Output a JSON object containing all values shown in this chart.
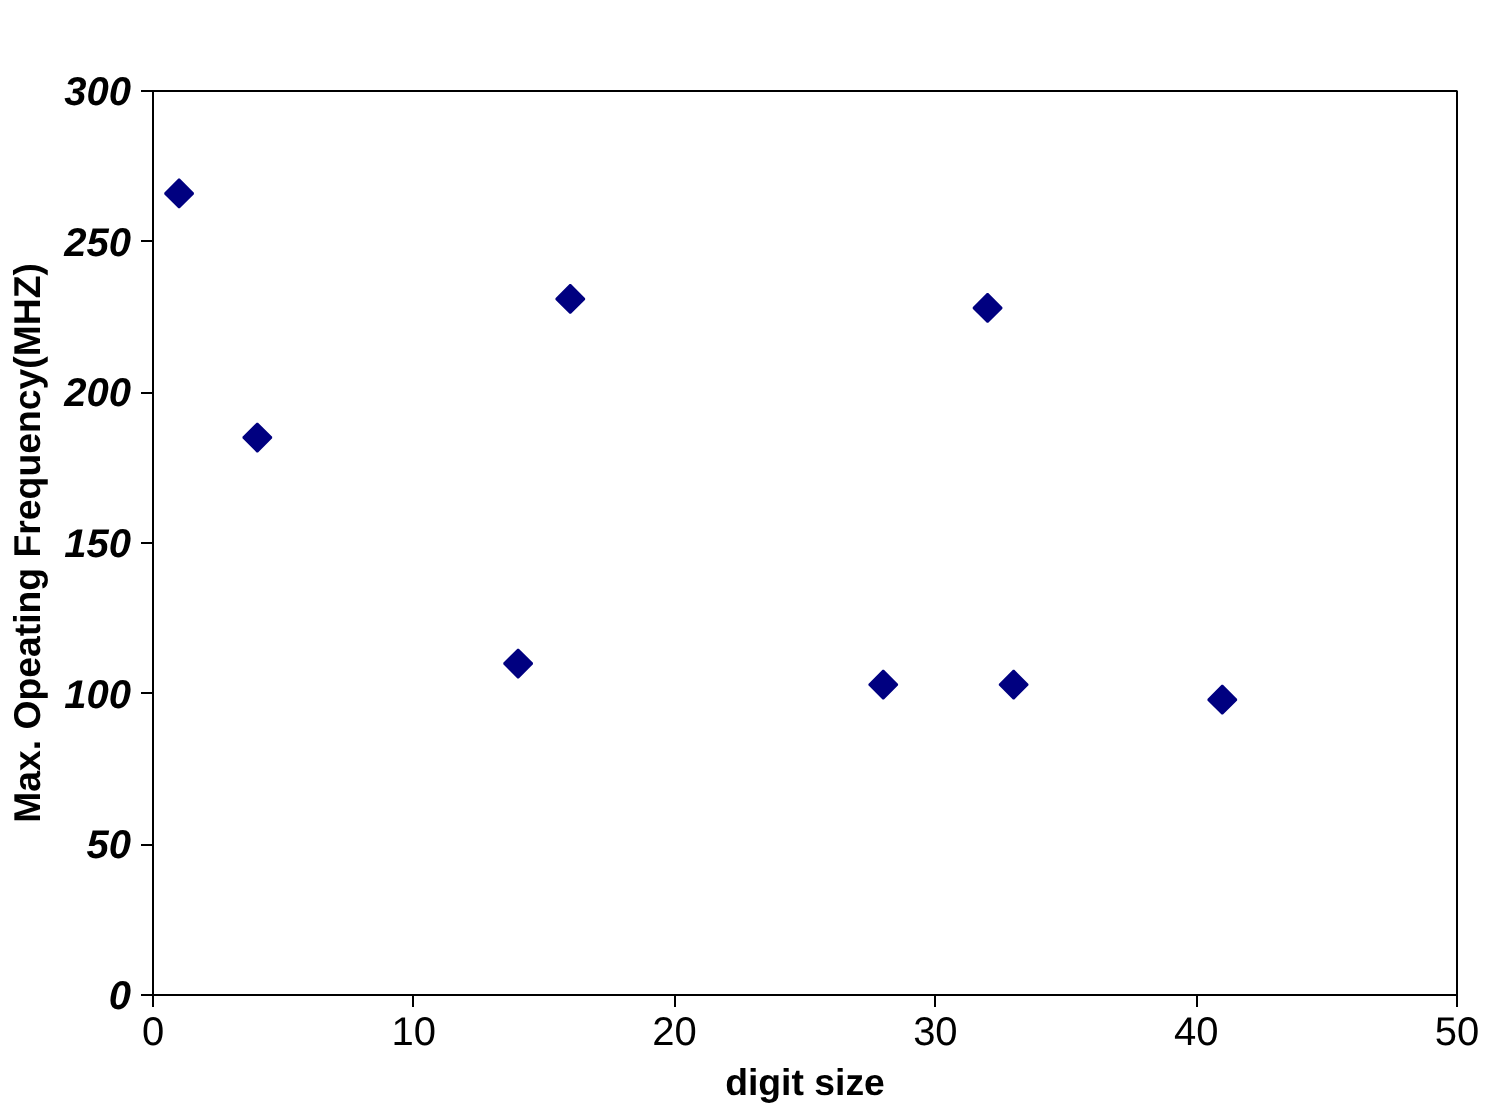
{
  "chart_data": {
    "type": "scatter",
    "xlabel": "digit size",
    "ylabel": "Max. Opeating Frequency(MHZ)",
    "x": [
      1,
      4,
      14,
      16,
      28,
      32,
      33,
      41
    ],
    "values": [
      266,
      185,
      110,
      231,
      103,
      228,
      103,
      98
    ],
    "color": "#000080",
    "marker": "diamond",
    "xlim": [
      0,
      50
    ],
    "xticks": [
      0,
      10,
      20,
      30,
      40,
      50
    ],
    "ylim": [
      0,
      300
    ],
    "yticks": [
      0,
      50,
      100,
      150,
      200,
      250,
      300
    ],
    "grid": false
  }
}
